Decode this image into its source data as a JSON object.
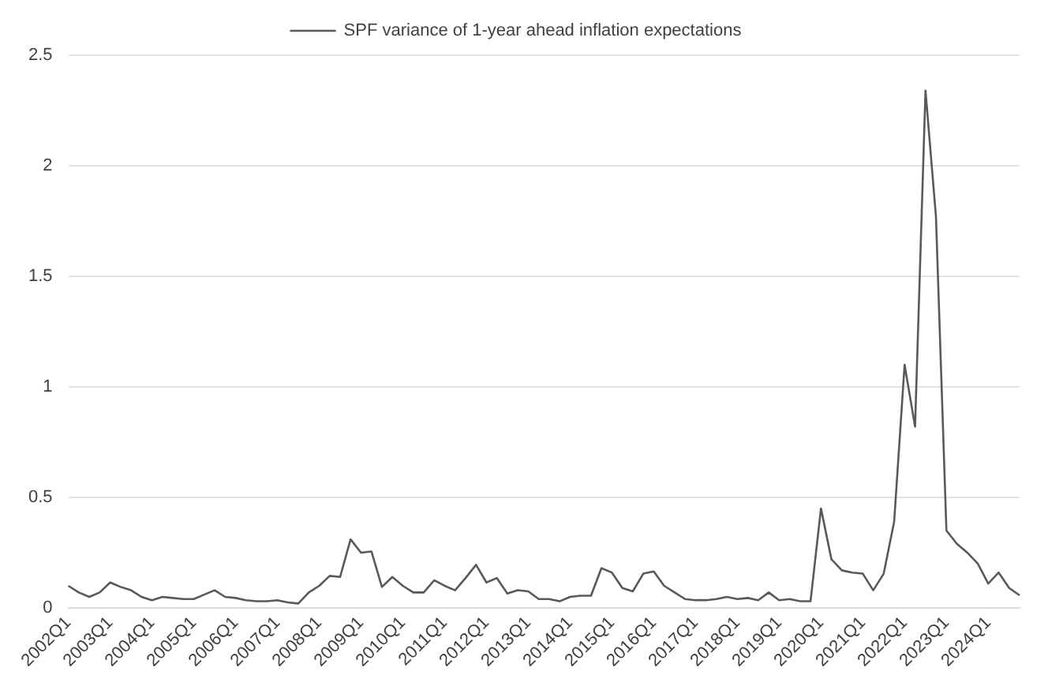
{
  "chart_data": {
    "type": "line",
    "categories": [
      "2002Q1",
      null,
      null,
      null,
      "2003Q1",
      null,
      null,
      null,
      "2004Q1",
      null,
      null,
      null,
      "2005Q1",
      null,
      null,
      null,
      "2006Q1",
      null,
      null,
      null,
      "2007Q1",
      null,
      null,
      null,
      "2008Q1",
      null,
      null,
      null,
      "2009Q1",
      null,
      null,
      null,
      "2010Q1",
      null,
      null,
      null,
      "2011Q1",
      null,
      null,
      null,
      "2012Q1",
      null,
      null,
      null,
      "2013Q1",
      null,
      null,
      null,
      "2014Q1",
      null,
      null,
      null,
      "2015Q1",
      null,
      null,
      null,
      "2016Q1",
      null,
      null,
      null,
      "2017Q1",
      null,
      null,
      null,
      "2018Q1",
      null,
      null,
      null,
      "2019Q1",
      null,
      null,
      null,
      "2020Q1",
      null,
      null,
      null,
      "2021Q1",
      null,
      null,
      null,
      "2022Q1",
      null,
      null,
      null,
      "2023Q1",
      null,
      null,
      null,
      "2024Q1",
      null,
      null,
      null
    ],
    "series": [
      {
        "name": "SPF variance of 1-year ahead inflation expectations",
        "color": "#595959",
        "values": [
          0.1,
          0.07,
          0.05,
          0.07,
          0.115,
          0.095,
          0.08,
          0.05,
          0.035,
          0.05,
          0.045,
          0.04,
          0.04,
          0.06,
          0.08,
          0.05,
          0.045,
          0.035,
          0.03,
          0.03,
          0.035,
          0.025,
          0.02,
          0.07,
          0.1,
          0.145,
          0.14,
          0.31,
          0.25,
          0.255,
          0.095,
          0.14,
          0.1,
          0.07,
          0.07,
          0.125,
          0.1,
          0.08,
          0.135,
          0.195,
          0.115,
          0.135,
          0.065,
          0.08,
          0.075,
          0.04,
          0.04,
          0.03,
          0.05,
          0.055,
          0.055,
          0.18,
          0.16,
          0.09,
          0.075,
          0.155,
          0.165,
          0.1,
          0.07,
          0.04,
          0.035,
          0.035,
          0.04,
          0.05,
          0.04,
          0.045,
          0.035,
          0.07,
          0.035,
          0.04,
          0.03,
          0.03,
          0.45,
          0.22,
          0.17,
          0.16,
          0.155,
          0.08,
          0.155,
          0.39,
          1.1,
          0.82,
          2.34,
          1.77,
          0.35,
          0.29,
          0.25,
          0.2,
          0.11,
          0.16,
          0.09,
          0.057
        ]
      }
    ],
    "ylim": [
      0,
      2.5
    ],
    "yticks": [
      0,
      0.5,
      1,
      1.5,
      2,
      2.5
    ],
    "grid": "y",
    "legend": "top",
    "marker": "none",
    "line_style": "solid"
  }
}
